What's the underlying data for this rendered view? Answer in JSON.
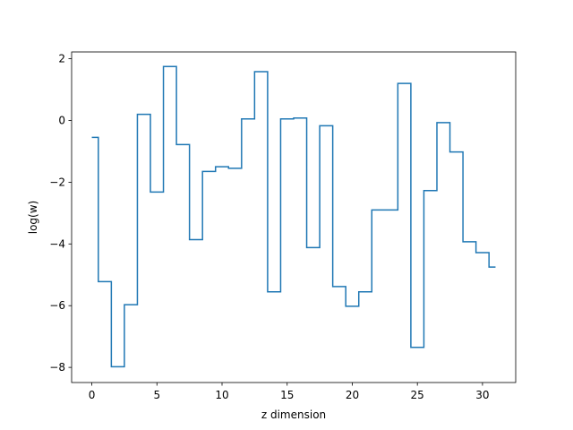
{
  "chart_data": {
    "type": "line",
    "step": "mid",
    "title": "",
    "xlabel": "z dimension",
    "ylabel": "log(w)",
    "xlim": [
      -1.55,
      32.55
    ],
    "ylim": [
      -8.49,
      2.22
    ],
    "xticks": [
      0,
      5,
      10,
      15,
      20,
      25,
      30
    ],
    "yticks": [
      -8,
      -6,
      -4,
      -2,
      0,
      2
    ],
    "grid": false,
    "legend": "none",
    "color": "#1f77b4",
    "x": [
      0,
      1,
      2,
      3,
      4,
      5,
      6,
      7,
      8,
      9,
      10,
      11,
      12,
      13,
      14,
      15,
      16,
      17,
      18,
      19,
      20,
      21,
      22,
      23,
      24,
      25,
      26,
      27,
      28,
      29,
      30,
      31
    ],
    "y": [
      -0.55,
      -5.22,
      -7.98,
      -5.97,
      0.2,
      -2.32,
      1.75,
      -0.78,
      -3.86,
      -1.65,
      -1.5,
      -1.55,
      0.05,
      1.58,
      -5.55,
      0.05,
      0.08,
      -4.12,
      -0.17,
      -5.38,
      -6.02,
      -5.55,
      -2.9,
      -2.9,
      1.2,
      -7.35,
      -2.27,
      -0.07,
      -1.02,
      -3.93,
      -4.28,
      -4.75
    ]
  }
}
